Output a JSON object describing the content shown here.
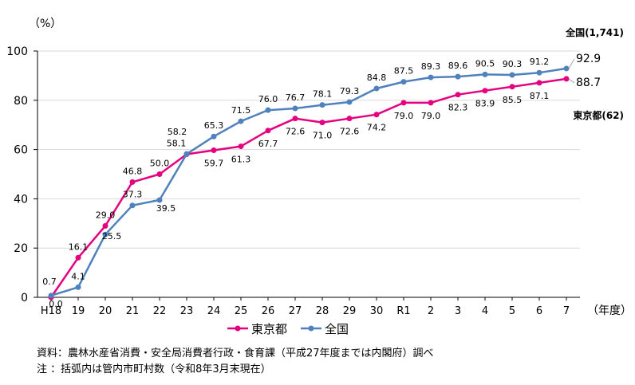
{
  "chart_data": {
    "type": "line",
    "ylabel": "（%）",
    "xunit": "（年度）",
    "ylim": [
      0,
      100
    ],
    "yticks": [
      0,
      20,
      40,
      60,
      80,
      100
    ],
    "categories": [
      "H18",
      "19",
      "20",
      "21",
      "22",
      "23",
      "24",
      "25",
      "26",
      "27",
      "28",
      "29",
      "30",
      "R1",
      "2",
      "3",
      "4",
      "5",
      "6",
      "7"
    ],
    "series": [
      {
        "name": "東京都",
        "color": "#e5007f",
        "end_label": "東京都(62)",
        "values": [
          0.0,
          16.1,
          29.0,
          46.8,
          50.0,
          58.1,
          59.7,
          61.3,
          67.7,
          72.6,
          71.0,
          72.6,
          74.2,
          79.0,
          79.0,
          82.3,
          83.9,
          85.5,
          87.1,
          88.7
        ],
        "labels": [
          "0.0",
          "16.1",
          "29.0",
          "46.8",
          "50.0",
          "58.1",
          "59.7",
          "61.3",
          "67.7",
          "72.6",
          "71.0",
          "72.6",
          "74.2",
          "79.0",
          "79.0",
          "82.3",
          "83.9",
          "85.5",
          "87.1",
          "88.7"
        ]
      },
      {
        "name": "全国",
        "color": "#4f81bd",
        "end_label": "全国(1,741)",
        "values": [
          0.7,
          4.1,
          25.5,
          37.3,
          39.5,
          58.2,
          65.3,
          71.5,
          76.0,
          76.7,
          78.1,
          79.3,
          84.8,
          87.5,
          89.3,
          89.6,
          90.5,
          90.3,
          91.2,
          92.9
        ],
        "labels": [
          "0.7",
          "4.1",
          "25.5",
          "37.3",
          "39.5",
          "58.2",
          "65.3",
          "71.5",
          "76.0",
          "76.7",
          "78.1",
          "79.3",
          "84.8",
          "87.5",
          "89.3",
          "89.6",
          "90.5",
          "90.3",
          "91.2",
          "92.9"
        ]
      }
    ],
    "legend_position": "bottom-center"
  },
  "notes": {
    "source": "資料：農林水産省消費・安全局消費者行政・食育課（平成27年度までは内閣府）調べ",
    "note": " 注 ：括弧内は管内市町村数（令和8年3月末現在）"
  }
}
